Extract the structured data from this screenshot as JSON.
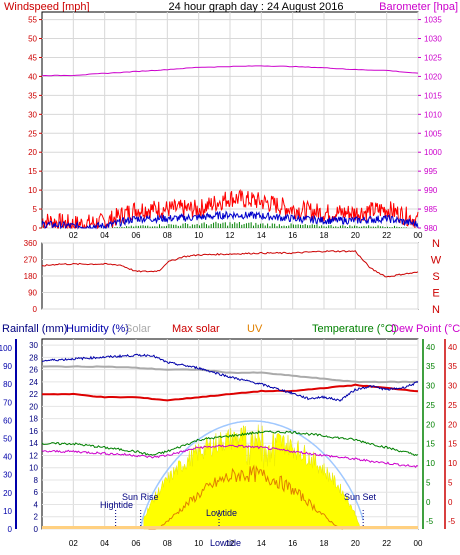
{
  "title": "24 hour graph day : 24 August 2016",
  "colors": {
    "wind": "#ff0000",
    "gust": "#0000cc",
    "avg": "#008000",
    "baro": "#cc00cc",
    "dir": "#cc0000",
    "rain": "#000080",
    "hum": "#0000aa",
    "solar": "#ffff00",
    "maxsolar": "#a0c8ff",
    "uv": "#e08000",
    "temp": "#008000",
    "dew": "#cc00cc",
    "grey": "#aaaaaa",
    "red2": "#dd0000"
  },
  "chart_data": [
    {
      "type": "line",
      "panel": "wind-baro",
      "ylabel_left": "Windspeed [mph]",
      "ylabel_right": "Barometer [hpa]",
      "x_ticks": [
        "02",
        "04",
        "06",
        "08",
        "10",
        "12",
        "14",
        "16",
        "18",
        "20",
        "22",
        "00"
      ],
      "y_left_ticks": [
        "55",
        "50",
        "45",
        "40",
        "35",
        "30",
        "25",
        "20",
        "15",
        "10",
        "5",
        "0"
      ],
      "y_right_ticks": [
        "1035",
        "1030",
        "1025",
        "1020",
        "1015",
        "1010",
        "1005",
        "1000",
        "995",
        "990",
        "985",
        "980"
      ],
      "ylim_left": [
        0,
        57
      ],
      "ylim_right": [
        980,
        1037
      ],
      "series": [
        {
          "x": [
            0,
            2,
            4,
            6,
            8,
            10,
            12,
            14,
            16,
            18,
            20,
            22,
            24
          ],
          "values": [
            2,
            1,
            1.5,
            5,
            5,
            5,
            8,
            7,
            5,
            4,
            4,
            5,
            2
          ]
        },
        {
          "x": [
            0,
            2,
            4,
            6,
            8,
            10,
            12,
            14,
            16,
            18,
            20,
            22,
            24
          ],
          "values": [
            1,
            0.5,
            0.5,
            2.5,
            2.5,
            2.8,
            3.5,
            3.2,
            2.5,
            2,
            2,
            2.5,
            1
          ]
        },
        {
          "x": [
            0,
            2,
            4,
            6,
            8,
            10,
            12,
            14,
            16,
            18,
            20,
            22,
            24
          ],
          "values": [
            0,
            0,
            0,
            0.5,
            0.8,
            1,
            1.2,
            1,
            0.8,
            0.6,
            0.5,
            0.5,
            0
          ]
        },
        {
          "x": [
            0,
            2,
            4,
            6,
            8,
            10,
            12,
            14,
            16,
            18,
            20,
            22,
            24
          ],
          "values": [
            1020.2,
            1020.3,
            1020.8,
            1021.3,
            1021.8,
            1022.4,
            1022.6,
            1022.8,
            1022.6,
            1022.3,
            1021.8,
            1021.6,
            1020.8
          ]
        }
      ]
    },
    {
      "type": "line",
      "panel": "direction",
      "y_left_ticks": [
        "360",
        "270",
        "180",
        "90",
        "0"
      ],
      "y_right_labels": [
        "N",
        "W",
        "S",
        "E",
        "N"
      ],
      "ylim": [
        0,
        360
      ],
      "series": [
        {
          "x": [
            0,
            1,
            4,
            5,
            6,
            7,
            7.5,
            8,
            9,
            10,
            12,
            14,
            16,
            18,
            20,
            20.5,
            21,
            22,
            23,
            24
          ],
          "values": [
            235,
            245,
            245,
            240,
            205,
            205,
            210,
            255,
            285,
            295,
            300,
            305,
            305,
            315,
            315,
            265,
            220,
            175,
            190,
            200
          ]
        }
      ]
    },
    {
      "type": "line",
      "panel": "rain-hum-solar-temp",
      "labels": [
        "Rainfall (mm)",
        "Humidity (%)",
        "Solar",
        "Max solar",
        "UV",
        "Temperature (°C)",
        "Dew Point (°C)"
      ],
      "y_hum_ticks": [
        "100",
        "90",
        "80",
        "70",
        "60",
        "50",
        "40",
        "30",
        "20",
        "10",
        "0"
      ],
      "y_rain_ticks": [
        "30",
        "28",
        "26",
        "24",
        "22",
        "20",
        "18",
        "16",
        "14",
        "12",
        "10",
        "8",
        "6",
        "4",
        "2",
        "0"
      ],
      "y_temp_ticks": [
        "40",
        "35",
        "30",
        "25",
        "20",
        "15",
        "10",
        "5",
        "0",
        "-5"
      ],
      "annotations": [
        "Sun Rise",
        "Hightide",
        "Lowtide",
        "Sun Set",
        "Lowtide"
      ],
      "series": [
        {
          "x": [
            0,
            2,
            4,
            6,
            7,
            8,
            10,
            12,
            14,
            16,
            17,
            18,
            19,
            20,
            21,
            22,
            23,
            24
          ],
          "values": [
            93,
            94,
            95,
            96,
            96,
            92,
            89,
            84,
            80,
            75,
            72,
            73,
            71,
            77,
            79,
            77,
            78,
            81
          ]
        },
        {
          "x": [
            0,
            2,
            4,
            6,
            8,
            10,
            12,
            14,
            16,
            18,
            20,
            22,
            24
          ],
          "values": [
            22,
            22,
            21.5,
            21.5,
            21,
            21.5,
            22,
            22.5,
            22.5,
            23,
            23.5,
            23,
            22.5
          ]
        },
        {
          "x": [
            0,
            2,
            4,
            6,
            8,
            10,
            12,
            14,
            16,
            18,
            20,
            22,
            24
          ],
          "values": [
            26.5,
            26.5,
            26.5,
            26.3,
            26,
            26,
            25.5,
            25.5,
            25,
            24.5,
            24,
            24,
            24
          ]
        },
        {
          "x": [
            0,
            2,
            4,
            6,
            7,
            8,
            10,
            12,
            14,
            16,
            18,
            20,
            22,
            24
          ],
          "values": [
            15,
            15,
            14,
            13,
            12,
            13,
            16,
            17,
            18,
            18,
            17,
            16,
            14,
            12
          ]
        },
        {
          "x": [
            0,
            2,
            4,
            6,
            7,
            8,
            10,
            12,
            14,
            16,
            18,
            20,
            22,
            24
          ],
          "values": [
            13,
            13,
            12.5,
            12,
            11.5,
            12,
            14,
            14.5,
            14,
            13,
            12,
            11,
            10,
            9
          ]
        }
      ]
    }
  ]
}
